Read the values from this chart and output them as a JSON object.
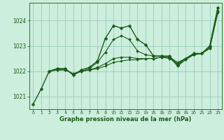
{
  "title": "Graphe pression niveau de la mer (hPa)",
  "background_color": "#cceedd",
  "grid_color": "#99ccbb",
  "line_color": "#1a5c1a",
  "xlim": [
    -0.5,
    23.5
  ],
  "ylim": [
    1020.5,
    1024.7
  ],
  "yticks": [
    1021,
    1022,
    1023,
    1024
  ],
  "xticks": [
    0,
    1,
    2,
    3,
    4,
    5,
    6,
    7,
    8,
    9,
    10,
    11,
    12,
    13,
    14,
    15,
    16,
    17,
    18,
    19,
    20,
    21,
    22,
    23
  ],
  "series": [
    {
      "x": [
        0,
        1,
        2,
        3,
        4,
        5,
        6,
        7,
        8,
        9,
        10,
        11,
        12,
        13,
        14,
        15,
        16,
        17,
        18,
        19,
        20,
        21,
        22,
        23
      ],
      "y": [
        1020.7,
        1021.3,
        1022.0,
        1022.1,
        1022.1,
        1021.85,
        1022.05,
        1022.15,
        1022.4,
        1023.3,
        1023.8,
        1023.7,
        1023.8,
        1023.25,
        1023.05,
        1022.6,
        1022.6,
        1022.6,
        1022.25,
        1022.5,
        1022.7,
        1022.7,
        1023.0,
        1024.5
      ],
      "lw": 1.0,
      "ms": 2.5
    },
    {
      "x": [
        2,
        3,
        4,
        5,
        6,
        7,
        8,
        9,
        10,
        11,
        12,
        13,
        14,
        15,
        16,
        17,
        18,
        19,
        20,
        21,
        22,
        23
      ],
      "y": [
        1022.0,
        1022.1,
        1022.1,
        1021.85,
        1022.0,
        1022.1,
        1022.35,
        1022.75,
        1023.25,
        1023.4,
        1023.25,
        1022.8,
        1022.65,
        1022.6,
        1022.6,
        1022.55,
        1022.2,
        1022.45,
        1022.65,
        1022.7,
        1022.95,
        1024.4
      ],
      "lw": 0.8,
      "ms": 2.0
    },
    {
      "x": [
        2,
        3,
        4,
        5,
        6,
        7,
        8,
        9,
        10,
        11,
        12,
        13,
        14,
        15,
        16,
        17,
        18,
        19,
        20,
        21,
        22,
        23
      ],
      "y": [
        1022.0,
        1022.05,
        1022.05,
        1021.9,
        1022.0,
        1022.05,
        1022.15,
        1022.3,
        1022.5,
        1022.55,
        1022.55,
        1022.5,
        1022.5,
        1022.5,
        1022.55,
        1022.5,
        1022.3,
        1022.5,
        1022.65,
        1022.7,
        1022.9,
        1024.35
      ],
      "lw": 0.8,
      "ms": 2.0
    },
    {
      "x": [
        2,
        3,
        4,
        5,
        6,
        7,
        8,
        9,
        10,
        11,
        12,
        13,
        14,
        15,
        16,
        17,
        18,
        19,
        20,
        21,
        22,
        23
      ],
      "y": [
        1022.0,
        1022.05,
        1022.05,
        1021.9,
        1022.0,
        1022.05,
        1022.1,
        1022.2,
        1022.35,
        1022.4,
        1022.45,
        1022.45,
        1022.5,
        1022.5,
        1022.55,
        1022.55,
        1022.35,
        1022.5,
        1022.65,
        1022.7,
        1022.9,
        1024.3
      ],
      "lw": 0.8,
      "ms": 1.8
    }
  ]
}
